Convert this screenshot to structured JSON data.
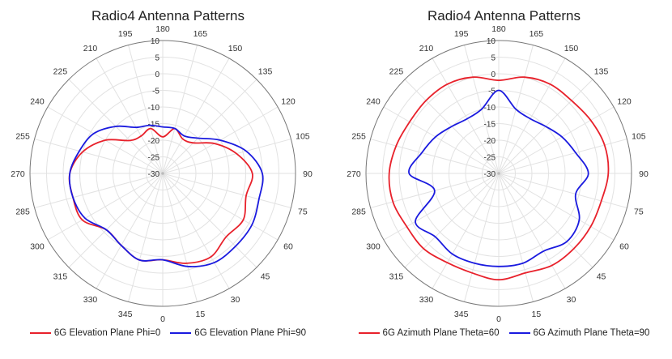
{
  "chart_data": [
    {
      "type": "polar-line",
      "title": "Radio4 Antenna Patterns",
      "theta_ticks": [
        "180",
        "165",
        "150",
        "135",
        "120",
        "105",
        "90",
        "75",
        "60",
        "45",
        "30",
        "15",
        "0",
        "345",
        "330",
        "315",
        "300",
        "285",
        "270",
        "255",
        "240",
        "225",
        "210",
        "195"
      ],
      "r_ticks": [
        "10",
        "5",
        "0",
        "-5",
        "-10",
        "-15",
        "-20",
        "-25",
        "-30"
      ],
      "rlim": [
        -30,
        10
      ],
      "grid": true,
      "legend_placement": "bottom",
      "angles": [
        0,
        15,
        30,
        45,
        60,
        75,
        90,
        105,
        120,
        135,
        150,
        165,
        180,
        195,
        210,
        225,
        240,
        255,
        270,
        285,
        300,
        315,
        330,
        345
      ],
      "series": [
        {
          "name": "6G Elevation Plane Phi=0",
          "color": "#e8212b",
          "values": [
            -4,
            -2,
            -1,
            -3,
            -2,
            -4,
            -3,
            -7,
            -12,
            -17,
            -18,
            -16,
            -19,
            -16,
            -17,
            -16,
            -10,
            -5,
            -2,
            -2,
            -2,
            -6,
            -5,
            -3
          ]
        },
        {
          "name": "6G Elevation Plane Phi=90",
          "color": "#1a1adf",
          "values": [
            -4,
            -1,
            1,
            1,
            1,
            0,
            0,
            -4,
            -10,
            -15,
            -17,
            -16,
            -16,
            -15,
            -14,
            -10,
            -6,
            -4,
            -2,
            -2,
            -3,
            -6,
            -5,
            -3
          ]
        }
      ]
    },
    {
      "type": "polar-line",
      "title": "Radio4 Antenna Patterns",
      "theta_ticks": [
        "180",
        "165",
        "150",
        "135",
        "120",
        "105",
        "90",
        "75",
        "60",
        "45",
        "30",
        "15",
        "0",
        "345",
        "330",
        "315",
        "300",
        "285",
        "270",
        "255",
        "240",
        "225",
        "210",
        "195"
      ],
      "r_ticks": [
        "10",
        "5",
        "0",
        "-5",
        "-10",
        "-15",
        "-20",
        "-25",
        "-30"
      ],
      "rlim": [
        -30,
        10
      ],
      "grid": true,
      "legend_placement": "bottom",
      "angles": [
        0,
        15,
        30,
        45,
        60,
        75,
        90,
        105,
        120,
        135,
        150,
        165,
        180,
        195,
        210,
        225,
        240,
        255,
        270,
        285,
        300,
        315,
        330,
        345
      ],
      "series": [
        {
          "name": "6G Azimuth Plane Theta=60",
          "color": "#e8212b",
          "values": [
            2,
            1,
            2,
            2,
            2,
            2,
            3,
            3,
            2,
            1,
            1,
            0,
            -2,
            0,
            1,
            1,
            1,
            2,
            3,
            3,
            2,
            2,
            1,
            1
          ]
        },
        {
          "name": "6G Azimuth Plane Theta=90",
          "color": "#1a1adf",
          "values": [
            -2,
            -2,
            -3,
            -1,
            -2,
            -6,
            -3,
            -6,
            -8,
            -10,
            -11,
            -10,
            -5,
            -10,
            -11,
            -10,
            -8,
            -6,
            -3,
            -10,
            -1,
            -3,
            -2,
            -2
          ]
        }
      ]
    }
  ]
}
